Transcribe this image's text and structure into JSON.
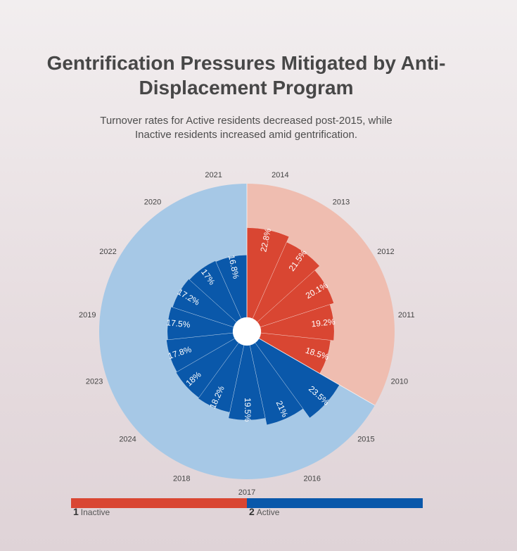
{
  "chart_data": {
    "type": "bar",
    "layout": "polar",
    "title": "Gentrification Pressures Mitigated by Anti-Displacement Program",
    "subtitle_lines": [
      "Turnover rates for Active residents decreased post-2015, while",
      "Inactive residents increased amid gentrification."
    ],
    "colors": {
      "inactive_bar": "#d94632",
      "inactive_band": "#efbdb0",
      "active_bar": "#0a58aa",
      "active_band": "#a6c8e6"
    },
    "categories": [
      "2014",
      "2013",
      "2012",
      "2011",
      "2010",
      "2015",
      "2016",
      "2017",
      "2018",
      "2024",
      "2023",
      "2019",
      "2022",
      "2020",
      "2021"
    ],
    "series": [
      {
        "name": "Inactive",
        "values": [
          22.8,
          21.5,
          20.1,
          19.2,
          18.5,
          null,
          null,
          null,
          null,
          null,
          null,
          null,
          null,
          null,
          null
        ]
      },
      {
        "name": "Active",
        "values": [
          null,
          null,
          null,
          null,
          null,
          23.5,
          21,
          19.5,
          18.2,
          18,
          17.8,
          17.5,
          17.2,
          17,
          16.8
        ]
      }
    ],
    "data_labels": [
      "22.8%",
      "21.5%",
      "20.1%",
      "19.2%",
      "18.5%",
      "23.5%",
      "21%",
      "19.5%",
      "18.2%",
      "18%",
      "17.8%",
      "17.5%",
      "17.2%",
      "17%",
      "16.8%"
    ],
    "legend": [
      {
        "number": "1",
        "label": "Inactive"
      },
      {
        "number": "2",
        "label": "Active"
      }
    ],
    "rmax": 25
  }
}
